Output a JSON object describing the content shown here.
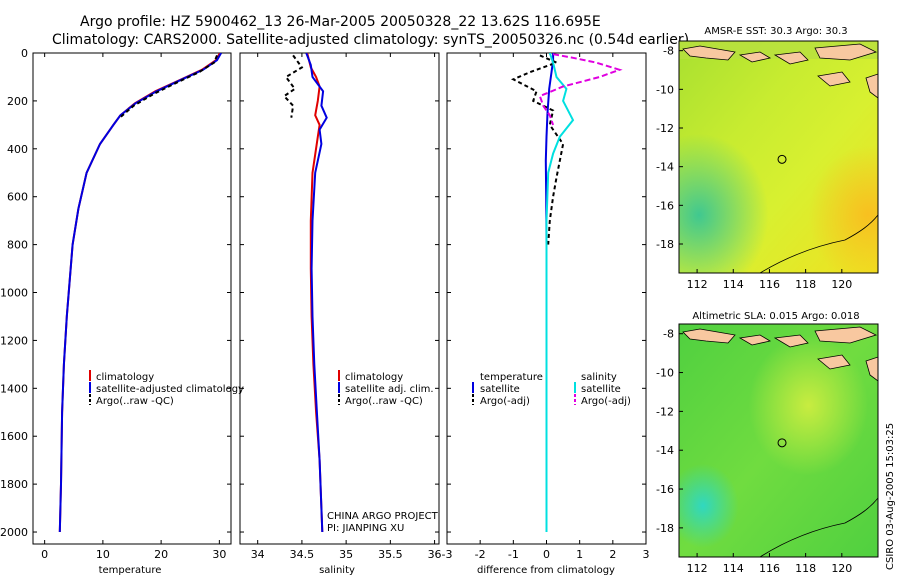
{
  "title": {
    "line1": "Argo profile: HZ 5900462_13 26-Mar-2005 20050328_22 13.62S 116.695E",
    "line2": "Climatology: CARS2000. Satellite-adjusted climatology: synTS_20050326.nc (0.54d earlier)"
  },
  "colors": {
    "climatology": "#e00000",
    "satellite": "#0000e0",
    "argo": "#000000",
    "sal_sat": "#00e0e0",
    "sal_argo": "#e000e0"
  },
  "chart_data": [
    {
      "type": "line",
      "name": "temperature-profile",
      "xlabel": "temperature",
      "xlim": [
        -2,
        32
      ],
      "ylim": [
        2050,
        0
      ],
      "xticks": [
        0,
        10,
        20,
        30
      ],
      "yticks": [
        0,
        200,
        400,
        600,
        800,
        1000,
        1200,
        1400,
        1600,
        1800,
        2000
      ],
      "legend": [
        "climatology",
        "satellite-adjusted climatology",
        "Argo(..raw -QC)"
      ],
      "series": [
        {
          "name": "climatology",
          "color": "#e00000",
          "dash": "",
          "x": [
            30.1,
            29.4,
            27,
            23.5,
            19,
            15.5,
            13,
            11.8,
            9.5,
            7.2,
            5.8,
            4.8,
            4.3,
            3.8,
            3.3,
            3.0,
            2.8,
            2.6
          ],
          "y": [
            0,
            30,
            70,
            110,
            160,
            210,
            260,
            300,
            380,
            500,
            650,
            800,
            950,
            1100,
            1300,
            1500,
            1800,
            2000
          ]
        },
        {
          "name": "satellite-adjusted climatology",
          "color": "#0000e0",
          "dash": "",
          "x": [
            30.3,
            29.6,
            27.2,
            23.6,
            19.2,
            15.6,
            13,
            11.8,
            9.5,
            7.2,
            5.8,
            4.8,
            4.3,
            3.8,
            3.3,
            3.0,
            2.8,
            2.6
          ],
          "y": [
            0,
            30,
            70,
            110,
            160,
            210,
            260,
            300,
            380,
            500,
            650,
            800,
            950,
            1100,
            1300,
            1500,
            1800,
            2000
          ]
        },
        {
          "name": "Argo(..raw -QC)",
          "color": "#000000",
          "dash": "4,3",
          "x": [
            29.6,
            29.1,
            26.5,
            23,
            18.8,
            15.3,
            12.9
          ],
          "y": [
            10,
            40,
            80,
            120,
            170,
            220,
            270
          ]
        }
      ]
    },
    {
      "type": "line",
      "name": "salinity-profile",
      "xlabel": "salinity",
      "xlim": [
        33.8,
        36.05
      ],
      "ylim": [
        2050,
        0
      ],
      "xticks": [
        34,
        34.5,
        35,
        35.5,
        36
      ],
      "legend": [
        "climatology",
        "satellite adj. clim.",
        "Argo(..raw -QC)"
      ],
      "annotations": [
        "CHINA ARGO PROJECT",
        "PI: JIANPING XU"
      ],
      "series": [
        {
          "name": "climatology",
          "color": "#e00000",
          "dash": "",
          "x": [
            34.56,
            34.6,
            34.66,
            34.7,
            34.68,
            34.65,
            34.7,
            34.68,
            34.62,
            34.6,
            34.6,
            34.61,
            34.63,
            34.66,
            34.7,
            34.72,
            34.73
          ],
          "y": [
            0,
            60,
            100,
            140,
            200,
            260,
            300,
            350,
            500,
            700,
            900,
            1100,
            1300,
            1500,
            1700,
            1900,
            2000
          ]
        },
        {
          "name": "satellite adj. clim.",
          "color": "#0000e0",
          "dash": "",
          "x": [
            34.55,
            34.6,
            34.62,
            34.74,
            34.72,
            34.78,
            34.7,
            34.72,
            34.65,
            34.62,
            34.61,
            34.62,
            34.64,
            34.67,
            34.7,
            34.72,
            34.73
          ],
          "y": [
            0,
            50,
            100,
            160,
            220,
            270,
            320,
            380,
            500,
            700,
            900,
            1100,
            1300,
            1500,
            1700,
            1900,
            2000
          ]
        },
        {
          "name": "Argo(..raw -QC)",
          "color": "#000000",
          "dash": "4,3",
          "x": [
            34.4,
            34.5,
            34.32,
            34.42,
            34.3,
            34.4,
            34.38
          ],
          "y": [
            10,
            60,
            100,
            150,
            180,
            220,
            270
          ]
        }
      ]
    },
    {
      "type": "line",
      "name": "difference-profile",
      "xlabel": "difference from climatology",
      "xlim": [
        -3,
        3
      ],
      "ylim": [
        2050,
        0
      ],
      "xticks": [
        -3,
        -2,
        -1,
        0,
        1,
        2,
        3
      ],
      "legend_left": {
        "title": "temperature",
        "items": [
          "satellite",
          "Argo(-adj)"
        ]
      },
      "legend_right": {
        "title": "salinity",
        "items": [
          "satellite",
          "Argo(-adj)"
        ]
      },
      "series": [
        {
          "name": "temperature satellite",
          "color": "#0000e0",
          "dash": "",
          "x": [
            0.2,
            0.2,
            0.15,
            0.08,
            0.03,
            0,
            -0.02,
            -0.01,
            0,
            0,
            0,
            0
          ],
          "y": [
            0,
            30,
            80,
            150,
            250,
            350,
            450,
            600,
            800,
            1200,
            1600,
            2000
          ]
        },
        {
          "name": "temperature Argo(-adj)",
          "color": "#000000",
          "dash": "4,3",
          "x": [
            -0.2,
            0.3,
            -0.5,
            -1.0,
            -0.3,
            -0.4,
            0.2,
            0.1,
            0.5,
            0.4,
            0.3,
            0.2,
            0.1,
            0.05
          ],
          "y": [
            10,
            40,
            80,
            110,
            160,
            200,
            240,
            300,
            380,
            450,
            520,
            600,
            700,
            800
          ]
        },
        {
          "name": "salinity satellite",
          "color": "#00e0e0",
          "dash": "",
          "x": [
            0.1,
            0.2,
            0.3,
            0.6,
            0.5,
            0.8,
            0.4,
            0.2,
            0.05,
            0,
            0,
            0,
            0
          ],
          "y": [
            0,
            40,
            100,
            150,
            200,
            280,
            350,
            420,
            500,
            700,
            1000,
            1500,
            2000
          ]
        },
        {
          "name": "salinity Argo(-adj)",
          "color": "#e000e0",
          "dash": "6,3",
          "x": [
            0.2,
            0.8,
            1.5,
            2.2,
            1.6,
            0.5,
            -0.2,
            -0.1,
            0.1,
            0.2
          ],
          "y": [
            5,
            20,
            40,
            70,
            100,
            140,
            180,
            220,
            260,
            300
          ]
        }
      ]
    },
    {
      "type": "heatmap",
      "name": "sst-map",
      "title": "AMSR-E SST: 30.3 Argo: 30.3",
      "xticks": [
        112,
        114,
        116,
        118,
        120
      ],
      "yticks": [
        -8,
        -10,
        -12,
        -14,
        -16,
        -18
      ],
      "xlim": [
        111,
        122
      ],
      "ylim": [
        -19.5,
        -7.5
      ],
      "marker": {
        "lon": 116.695,
        "lat": -13.62
      }
    },
    {
      "type": "heatmap",
      "name": "sla-map",
      "title": "Altimetric SLA: 0.015 Argo: 0.018",
      "xticks": [
        112,
        114,
        116,
        118,
        120
      ],
      "yticks": [
        -8,
        -10,
        -12,
        -14,
        -16,
        -18
      ],
      "xlim": [
        111,
        122
      ],
      "ylim": [
        -19.5,
        -7.5
      ],
      "marker": {
        "lon": 116.695,
        "lat": -13.62
      }
    }
  ],
  "side_stamp": "CSIRO 03-Aug-2005 15:03:25"
}
